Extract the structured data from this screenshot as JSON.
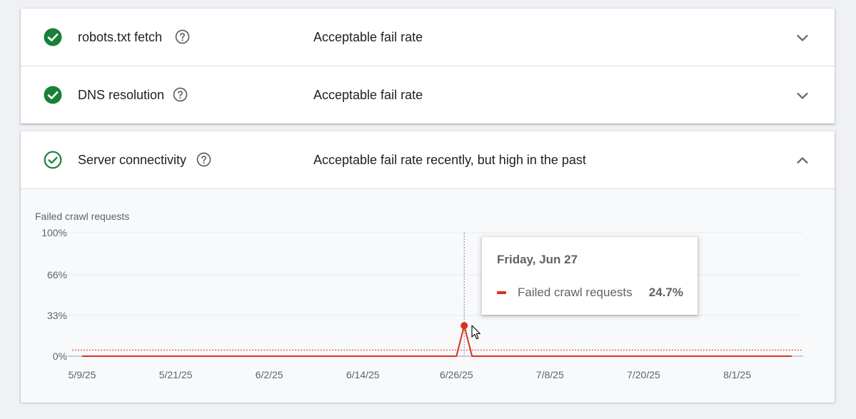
{
  "checks": [
    {
      "title": "robots.txt fetch",
      "status": "Acceptable fail rate",
      "icon": "check-circle-filled-icon",
      "expanded": false
    },
    {
      "title": "DNS resolution",
      "status": "Acceptable fail rate",
      "icon": "check-circle-filled-icon",
      "expanded": false
    },
    {
      "title": "Server connectivity",
      "status": "Acceptable fail rate recently, but high in the past",
      "icon": "check-circle-outline-icon",
      "expanded": true
    }
  ],
  "colors": {
    "ok": "#188038",
    "series": "#d93025",
    "threshold": "#d93025"
  },
  "tooltip": {
    "date": "Friday, Jun 27",
    "series": "Failed crawl requests",
    "value": "24.7%"
  },
  "chart_data": {
    "type": "line",
    "title": "Failed crawl requests",
    "ylim": [
      0,
      100
    ],
    "yticks": [
      0,
      33,
      66,
      100
    ],
    "ytick_labels": [
      "0%",
      "33%",
      "66%",
      "100%"
    ],
    "xlim": [
      "2025-05-09",
      "2025-08-08"
    ],
    "xticks": [
      "2025-05-09",
      "2025-05-21",
      "2025-06-02",
      "2025-06-14",
      "2025-06-26",
      "2025-07-08",
      "2025-07-20",
      "2025-08-01"
    ],
    "xtick_labels": [
      "5/9/25",
      "5/21/25",
      "6/2/25",
      "6/14/25",
      "6/26/25",
      "7/8/25",
      "7/20/25",
      "8/1/25"
    ],
    "threshold": 5,
    "grid": true,
    "series": [
      {
        "name": "Failed crawl requests",
        "points": [
          [
            "2025-05-09",
            0
          ],
          [
            "2025-06-25",
            0
          ],
          [
            "2025-06-26",
            0
          ],
          [
            "2025-06-27",
            24.7
          ],
          [
            "2025-06-28",
            0
          ],
          [
            "2025-08-08",
            0
          ]
        ]
      }
    ],
    "highlight": {
      "date": "2025-06-27",
      "value": 24.7
    }
  }
}
